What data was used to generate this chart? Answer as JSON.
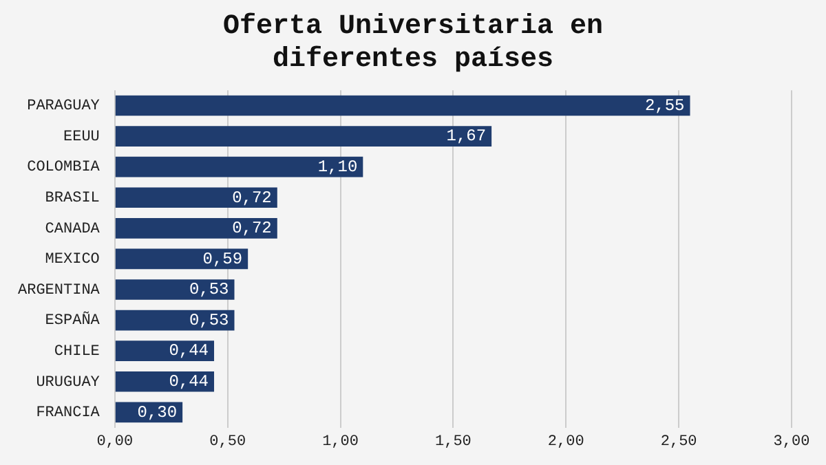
{
  "chart_data": {
    "type": "bar",
    "orientation": "horizontal",
    "title": "Oferta Universitaria en diferentes países",
    "categories": [
      "PARAGUAY",
      "EEUU",
      "COLOMBIA",
      "BRASIL",
      "CANADA",
      "MEXICO",
      "ARGENTINA",
      "ESPAÑA",
      "CHILE",
      "URUGUAY",
      "FRANCIA"
    ],
    "values": [
      2.55,
      1.67,
      1.1,
      0.72,
      0.72,
      0.59,
      0.53,
      0.53,
      0.44,
      0.44,
      0.3
    ],
    "value_labels": [
      "2,55",
      "1,67",
      "1,10",
      "0,72",
      "0,72",
      "0,59",
      "0,53",
      "0,53",
      "0,44",
      "0,44",
      "0,30"
    ],
    "color": "#1f3c6e",
    "xlim": [
      0,
      3
    ],
    "xticks": [
      {
        "value": 0,
        "label": "0,00"
      },
      {
        "value": 0.5,
        "label": "0,50"
      },
      {
        "value": 1,
        "label": "1,00"
      },
      {
        "value": 1.5,
        "label": "1,50"
      },
      {
        "value": 2,
        "label": "2,00"
      },
      {
        "value": 2.5,
        "label": "2,50"
      },
      {
        "value": 3,
        "label": "3,00"
      }
    ],
    "grid": "x",
    "legend": false
  }
}
